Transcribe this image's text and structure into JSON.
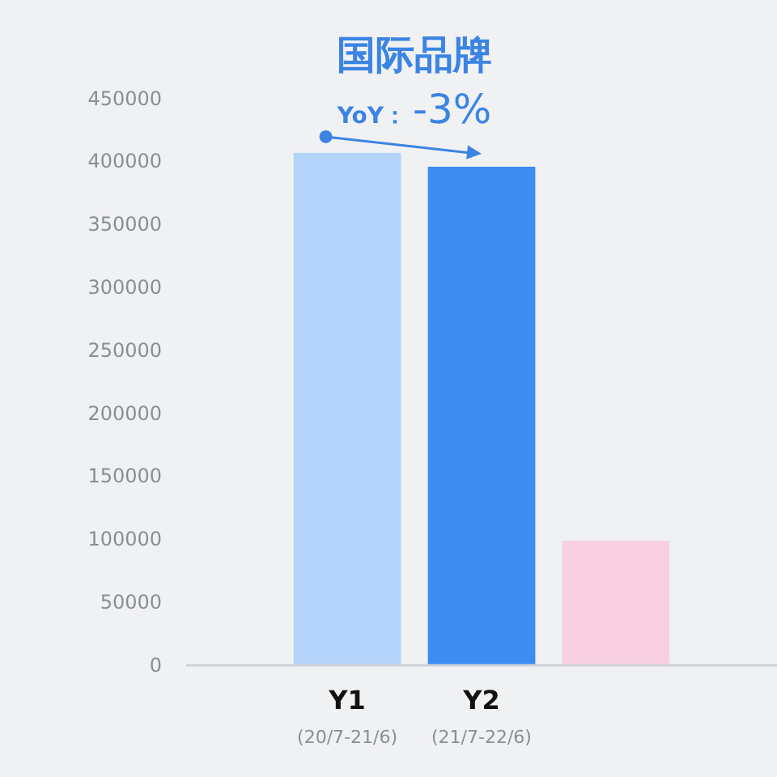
{
  "chart_data": {
    "type": "bar",
    "title": "国际品牌",
    "annotations": [
      "YoY：-3%"
    ],
    "categories": [
      "Y1\n(20/7-21/6)",
      "Y2\n(21/7-22/6)",
      null
    ],
    "values": [
      407000,
      396000,
      99000
    ],
    "colors": [
      "#b3d3fb",
      "#3d8cf2",
      "#f9d0e0"
    ],
    "ylim": [
      0,
      450000
    ],
    "yticks": [
      0,
      50000,
      100000,
      150000,
      200000,
      250000,
      300000,
      350000,
      400000,
      450000
    ],
    "grid": false
  }
}
